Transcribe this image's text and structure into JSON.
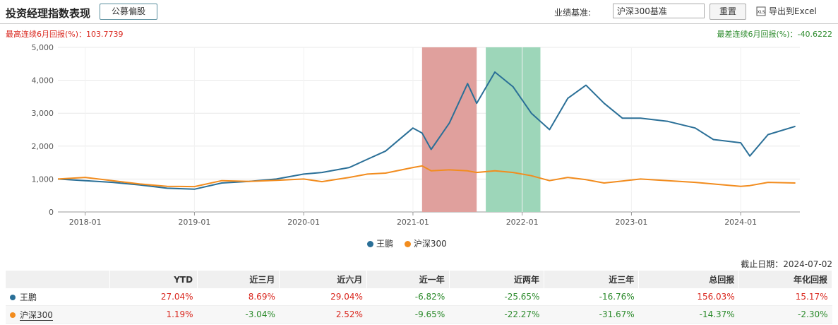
{
  "header": {
    "title": "投资经理指数表现",
    "style_button": "公募偏股",
    "benchmark_label": "业绩基准:",
    "benchmark_value": "沪深300基准",
    "reset_button": "重置",
    "export_label": "导出到Excel",
    "export_icon": "xls-icon"
  },
  "stats": {
    "best": "最高连续6月回报(%)：103.7739",
    "worst": "最差连续6月回报(%)：-40.6222"
  },
  "colors": {
    "manager": "#2a6f97",
    "benchmark": "#f28c1e",
    "best_band": "#e0a09d",
    "worst_band": "#9dd6b9"
  },
  "chart_data": {
    "type": "line",
    "x_ticks": [
      "2018-01",
      "2019-01",
      "2020-01",
      "2021-01",
      "2022-01",
      "2023-01",
      "2024-01"
    ],
    "ylim": [
      0,
      5000
    ],
    "y_ticks": [
      "0",
      "1,000",
      "2,000",
      "3,000",
      "4,000",
      "5,000"
    ],
    "grid": true,
    "legend": "bottom",
    "bands": [
      {
        "kind": "best",
        "from": "2021-02",
        "to": "2021-08"
      },
      {
        "kind": "worst",
        "from": "2021-09",
        "to": "2022-03"
      }
    ],
    "series": [
      {
        "name": "王鹏",
        "x": [
          "2017-10",
          "2018-01",
          "2018-04",
          "2018-07",
          "2018-10",
          "2019-01",
          "2019-04",
          "2019-07",
          "2019-10",
          "2020-01",
          "2020-03",
          "2020-06",
          "2020-08",
          "2020-10",
          "2021-01",
          "2021-02",
          "2021-03",
          "2021-05",
          "2021-07",
          "2021-08",
          "2021-10",
          "2021-12",
          "2022-02",
          "2022-04",
          "2022-06",
          "2022-08",
          "2022-10",
          "2022-12",
          "2023-02",
          "2023-05",
          "2023-08",
          "2023-10",
          "2024-01",
          "2024-02",
          "2024-04",
          "2024-07"
        ],
        "y": [
          1000,
          950,
          900,
          820,
          720,
          690,
          880,
          930,
          1000,
          1150,
          1200,
          1350,
          1600,
          1850,
          2550,
          2400,
          1900,
          2700,
          3900,
          3300,
          4250,
          3800,
          3000,
          2500,
          3450,
          3850,
          3300,
          2850,
          2850,
          2750,
          2550,
          2200,
          2100,
          1700,
          2350,
          2600
        ]
      },
      {
        "name": "沪深300",
        "x": [
          "2017-10",
          "2018-01",
          "2018-04",
          "2018-07",
          "2018-10",
          "2019-01",
          "2019-04",
          "2019-07",
          "2019-10",
          "2020-01",
          "2020-03",
          "2020-06",
          "2020-08",
          "2020-10",
          "2021-01",
          "2021-02",
          "2021-03",
          "2021-05",
          "2021-07",
          "2021-08",
          "2021-10",
          "2021-12",
          "2022-02",
          "2022-04",
          "2022-06",
          "2022-08",
          "2022-10",
          "2022-12",
          "2023-02",
          "2023-05",
          "2023-08",
          "2023-10",
          "2024-01",
          "2024-02",
          "2024-04",
          "2024-07"
        ],
        "y": [
          1000,
          1050,
          950,
          850,
          780,
          770,
          950,
          930,
          960,
          1000,
          920,
          1050,
          1150,
          1180,
          1350,
          1400,
          1250,
          1280,
          1250,
          1200,
          1250,
          1200,
          1100,
          950,
          1050,
          980,
          880,
          940,
          1000,
          950,
          900,
          850,
          780,
          800,
          900,
          880
        ]
      }
    ]
  },
  "table": {
    "as_of": "截止日期：2024-07-02",
    "columns": [
      "",
      "YTD",
      "近三月",
      "近六月",
      "近一年",
      "近两年",
      "近三年",
      "总回报",
      "年化回报"
    ],
    "rows": [
      {
        "name": "王鹏",
        "values": [
          "27.04%",
          "8.69%",
          "29.04%",
          "-6.82%",
          "-25.65%",
          "-16.76%",
          "156.03%",
          "15.17%"
        ]
      },
      {
        "name": "沪深300",
        "values": [
          "1.19%",
          "-3.04%",
          "2.52%",
          "-9.65%",
          "-22.27%",
          "-31.67%",
          "-14.37%",
          "-2.30%"
        ]
      }
    ]
  }
}
